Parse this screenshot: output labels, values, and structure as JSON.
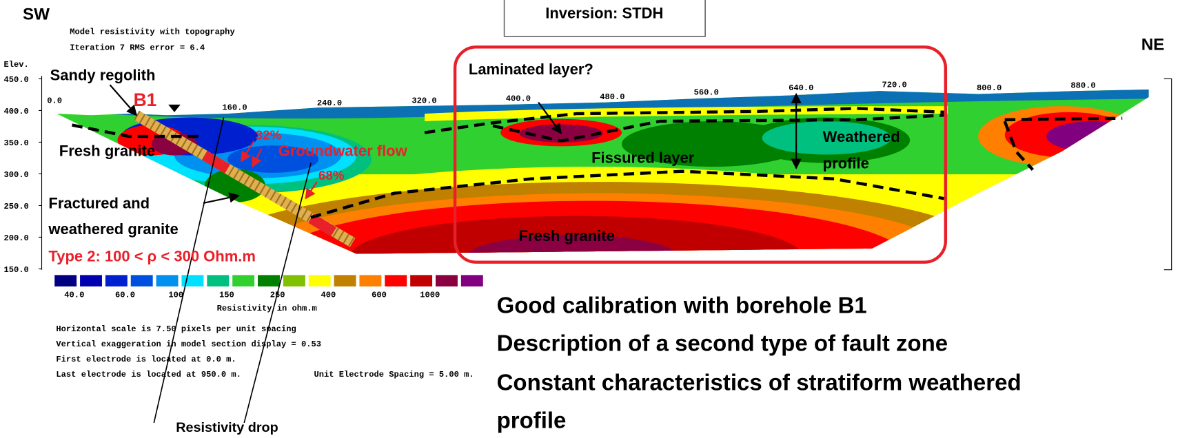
{
  "header": {
    "sw": "SW",
    "ne": "NE",
    "inversion": "Inversion: STDH"
  },
  "section": {
    "title": "Model resistivity with topography",
    "iteration": "Iteration 7 RMS error = 6.4",
    "elevation_label": "Elev.",
    "elevation_ticks": [
      "450.0",
      "400.0",
      "350.0",
      "300.0",
      "250.0",
      "200.0",
      "150.0"
    ],
    "distance_ticks": [
      "0.0",
      "160.0",
      "240.0",
      "320.0",
      "400.0",
      "480.0",
      "560.0",
      "640.0",
      "720.0",
      "800.0",
      "880.0"
    ]
  },
  "legend": {
    "values": [
      "40.0",
      "60.0",
      "100",
      "150",
      "250",
      "400",
      "600",
      "1000"
    ],
    "caption": "Resistivity in ohm.m"
  },
  "info": [
    "Horizontal scale is 7.50 pixels per unit spacing",
    "Vertical exaggeration in model section display = 0.53",
    "First electrode is located at 0.0  m.",
    "Last electrode is located at 950.0 m.",
    "Unit Electrode Spacing = 5.00 m."
  ],
  "annotations": {
    "sandy_regolith": "Sandy regolith",
    "b1": "B1",
    "fresh_granite_left": "Fresh granite",
    "pct_32": "32%",
    "groundwater_flow": "Groundwater flow",
    "pct_68": "68%",
    "fractured_1": "Fractured and",
    "fractured_2": "weathered granite",
    "type2": "Type 2: 100 < ρ < 300 Ohm.m",
    "laminated": "Laminated layer?",
    "fissured": "Fissured layer",
    "weathered_1": "Weathered",
    "weathered_2": "profile",
    "fresh_granite_bottom": "Fresh granite",
    "resistivity_drop": "Resistivity drop"
  },
  "conclusions": [
    "Good calibration with borehole B1",
    "Description of a second type of fault zone",
    "Constant characteristics of stratiform weathered",
    "profile"
  ]
}
